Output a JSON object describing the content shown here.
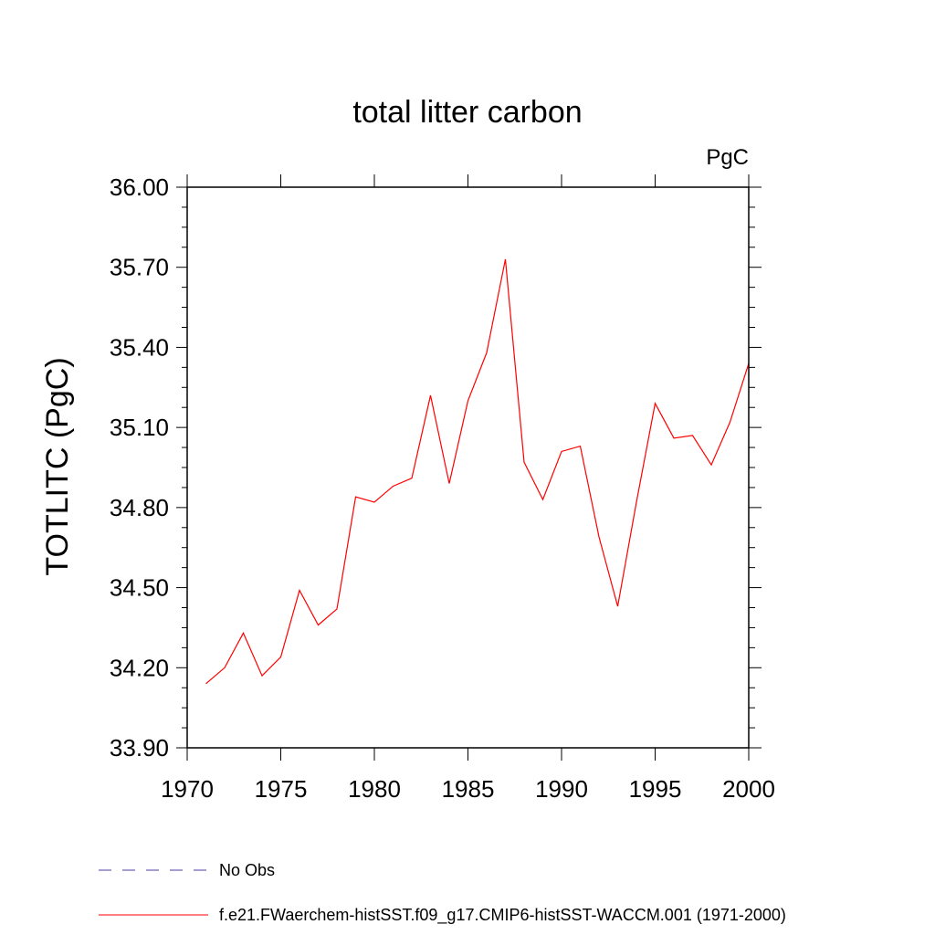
{
  "chart_data": {
    "type": "line",
    "title": "total litter carbon",
    "units_label": "PgC",
    "ylabel": "TOTLITC  (PgC)",
    "xlabel": "",
    "xlim": [
      1970,
      2000
    ],
    "ylim": [
      33.9,
      36.0
    ],
    "x_ticks": [
      1970,
      1975,
      1980,
      1985,
      1990,
      1995,
      2000
    ],
    "x_tick_labels": [
      "1970",
      "1975",
      "1980",
      "1985",
      "1990",
      "1995",
      "2000"
    ],
    "y_ticks": [
      33.9,
      34.2,
      34.5,
      34.8,
      35.1,
      35.4,
      35.7,
      36.0
    ],
    "y_tick_labels": [
      "33.90",
      "34.20",
      "34.50",
      "34.80",
      "35.10",
      "35.40",
      "35.70",
      "36.00"
    ],
    "grid": false,
    "series": [
      {
        "name": "f.e21.FWaerchem-histSST.f09_g17.CMIP6-histSST-WACCM.001 (1971-2000)",
        "color": "#ff0000",
        "x": [
          1971,
          1972,
          1973,
          1974,
          1975,
          1976,
          1977,
          1978,
          1979,
          1980,
          1981,
          1982,
          1983,
          1984,
          1985,
          1986,
          1987,
          1988,
          1989,
          1990,
          1991,
          1992,
          1993,
          1994,
          1995,
          1996,
          1997,
          1998,
          1999,
          2000
        ],
        "values": [
          34.14,
          34.2,
          34.33,
          34.17,
          34.24,
          34.49,
          34.36,
          34.42,
          34.84,
          34.82,
          34.88,
          34.91,
          35.22,
          34.89,
          35.2,
          35.38,
          35.73,
          34.97,
          34.83,
          35.01,
          35.03,
          34.69,
          34.43,
          34.82,
          35.19,
          35.06,
          35.07,
          34.96,
          35.12,
          35.34
        ]
      }
    ],
    "legend": {
      "placement": "bottom-left",
      "entries": [
        {
          "label": "No Obs",
          "style": "dashed",
          "color": "#4b3ea0"
        },
        {
          "label": "f.e21.FWaerchem-histSST.f09_g17.CMIP6-histSST-WACCM.001 (1971-2000)",
          "style": "solid",
          "color": "#ff0000"
        }
      ]
    }
  }
}
